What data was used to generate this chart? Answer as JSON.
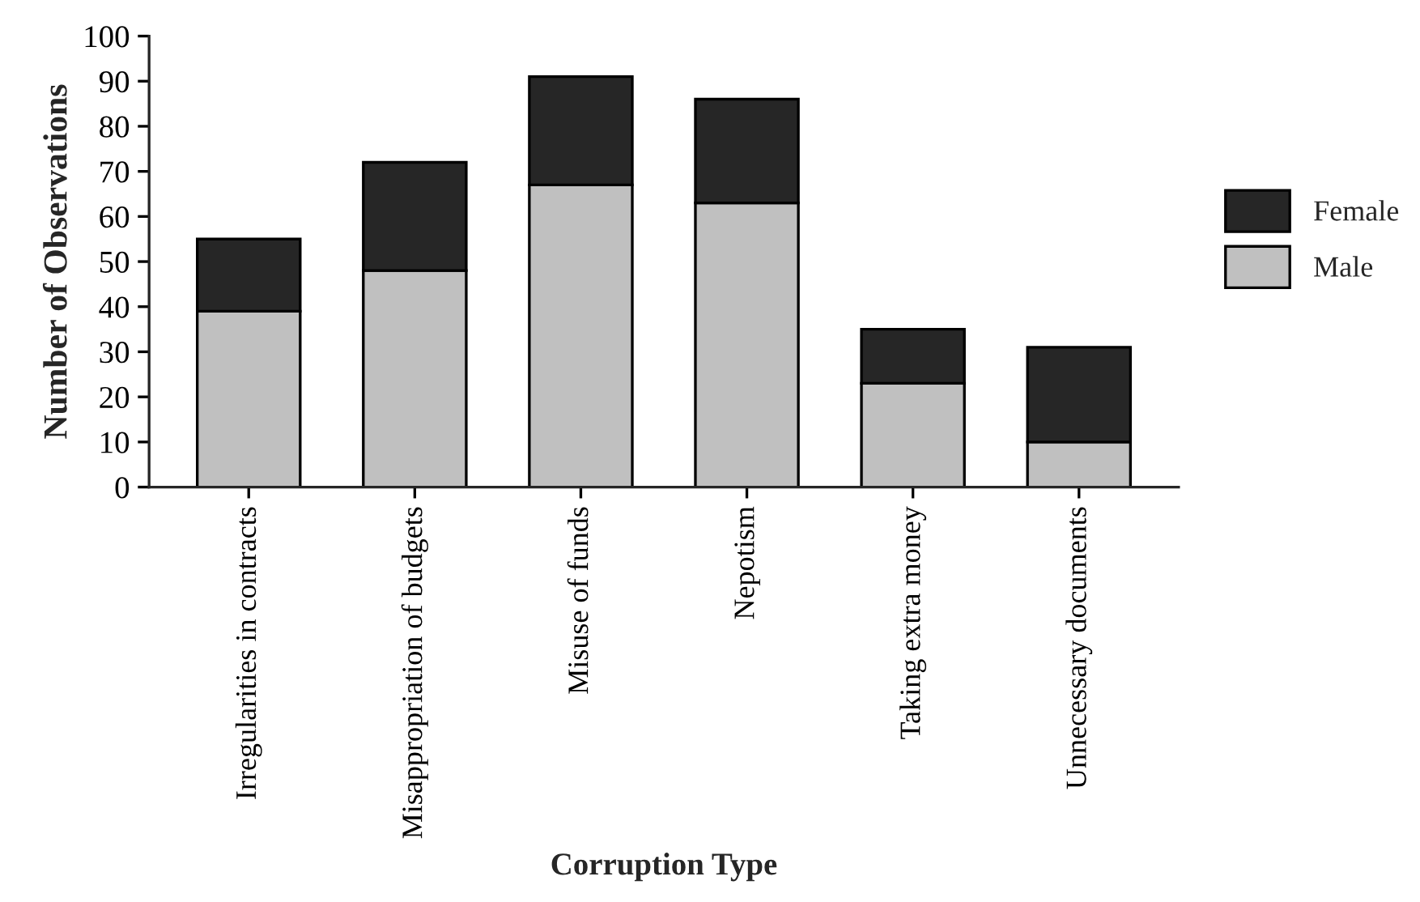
{
  "chart_data": {
    "type": "bar",
    "stacked": true,
    "xlabel": "Corruption Type",
    "ylabel": "Number of Observations",
    "categories": [
      "Irregularities in contracts",
      "Misappropriation of budgets",
      "Misuse of funds",
      "Nepotism",
      "Taking extra money",
      "Unnecessary documents"
    ],
    "series": [
      {
        "name": "Male",
        "color": "#c0c0c0",
        "values": [
          39,
          48,
          67,
          63,
          23,
          10
        ]
      },
      {
        "name": "Female",
        "color": "#262626",
        "values": [
          16,
          24,
          24,
          23,
          12,
          21
        ]
      }
    ],
    "ylim": [
      0,
      100
    ],
    "yticks": [
      0,
      10,
      20,
      30,
      40,
      50,
      60,
      70,
      80,
      90,
      100
    ],
    "grid": false,
    "legend": "right"
  }
}
